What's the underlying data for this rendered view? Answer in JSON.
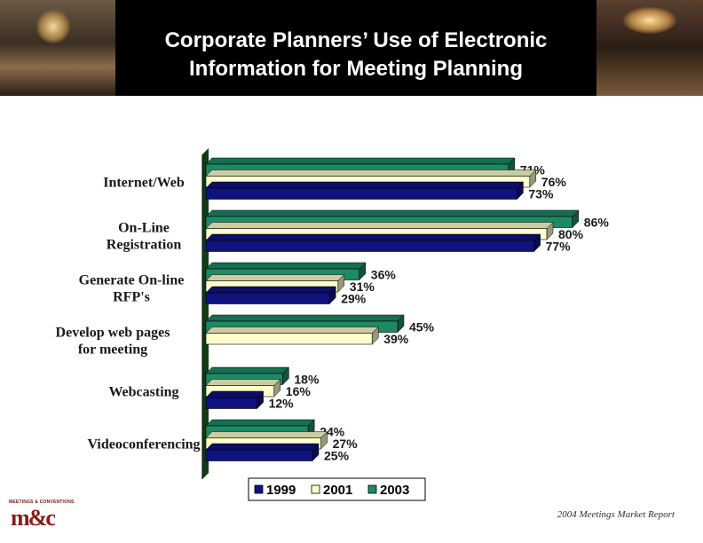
{
  "header": {
    "title_line1": "Corporate Planners’ Use of Electronic",
    "title_line2": "Information for Meeting Planning"
  },
  "colors": {
    "s1999": "#10127e",
    "s2001": "#ffffcc",
    "s2003": "#1c8a64"
  },
  "chart_data": {
    "type": "bar",
    "orientation": "horizontal",
    "grid": false,
    "legend_position": "bottom",
    "categories": [
      [
        "Internet/Web"
      ],
      [
        "On-Line",
        "Registration"
      ],
      [
        "Generate On-line",
        "RFP's"
      ],
      [
        "Develop web pages",
        "for meeting"
      ],
      [
        "Webcasting"
      ],
      [
        "Videoconferencing"
      ]
    ],
    "series": [
      {
        "name": "2003",
        "color": "#1c8a64",
        "values": [
          71,
          86,
          36,
          45,
          18,
          24
        ]
      },
      {
        "name": "2001",
        "color": "#ffffcc",
        "values": [
          76,
          80,
          31,
          39,
          16,
          27
        ]
      },
      {
        "name": "1999",
        "color": "#10127e",
        "values": [
          73,
          77,
          29,
          null,
          12,
          25
        ]
      }
    ],
    "legend": [
      "1999",
      "2001",
      "2003"
    ],
    "value_suffix": "%"
  },
  "footer": {
    "source": "2004 Meetings Market Report",
    "logo_top": "MEETINGS & CONVENTIONS",
    "logo_main": "m&c"
  }
}
